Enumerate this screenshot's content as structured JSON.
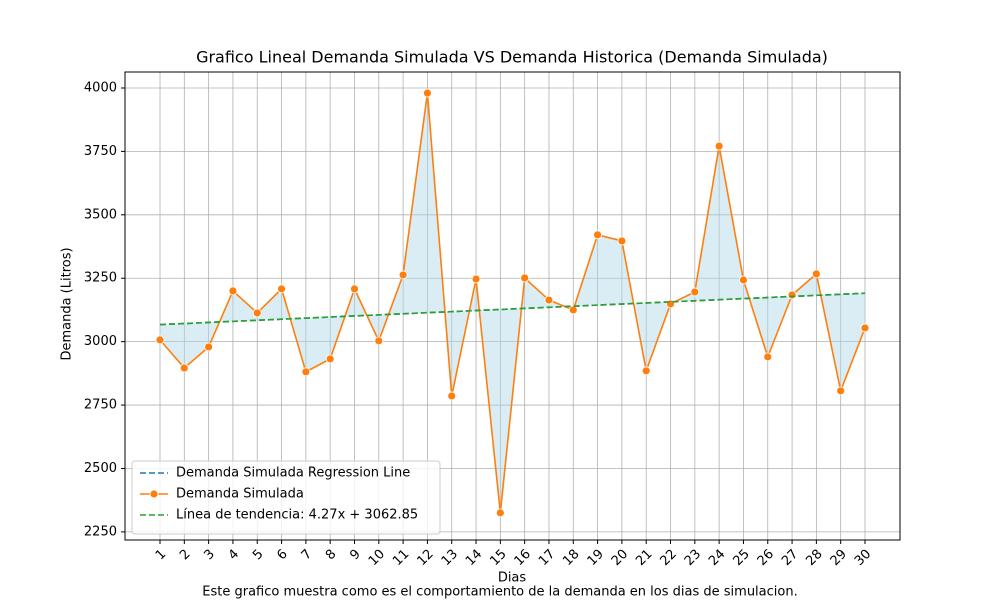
{
  "chart_data": {
    "type": "line",
    "title": "Grafico Lineal Demanda Simulada VS Demanda Historica (Demanda Simulada)",
    "xlabel": "Dias",
    "ylabel": "Demanda (Litros)",
    "caption": "Este grafico muestra como es el comportamiento de la demanda en los dias de simulacion.",
    "x": [
      1,
      2,
      3,
      4,
      5,
      6,
      7,
      8,
      9,
      10,
      11,
      12,
      13,
      14,
      15,
      16,
      17,
      18,
      19,
      20,
      21,
      22,
      23,
      24,
      25,
      26,
      27,
      28,
      29,
      30
    ],
    "xlim": [
      -0.44,
      31.44
    ],
    "xticks": [
      1,
      2,
      3,
      4,
      5,
      6,
      7,
      8,
      9,
      10,
      11,
      12,
      13,
      14,
      15,
      16,
      17,
      18,
      19,
      20,
      21,
      22,
      23,
      24,
      25,
      26,
      27,
      28,
      29,
      30
    ],
    "ylim": [
      2218,
      4063
    ],
    "yticks": [
      2250,
      2500,
      2750,
      3000,
      3250,
      3500,
      3750,
      4000
    ],
    "grid": true,
    "legend": "lower left",
    "fill_color": "#add8e6",
    "series": [
      {
        "name": "Demanda Simulada Regression Line",
        "color": "#1f77b4",
        "style": "dashed",
        "values": [
          3067.12,
          3071.39,
          3075.66,
          3079.93,
          3084.2,
          3088.47,
          3092.74,
          3097.01,
          3101.28,
          3105.55,
          3109.82,
          3114.09,
          3118.36,
          3122.63,
          3126.9,
          3131.17,
          3135.44,
          3139.71,
          3143.98,
          3148.25,
          3152.52,
          3156.79,
          3161.06,
          3165.33,
          3169.6,
          3173.87,
          3178.14,
          3182.41,
          3186.68,
          3190.95
        ]
      },
      {
        "name": "Demanda Simulada",
        "color": "#ff7f0e",
        "style": "solid",
        "marker": true,
        "values": [
          3007,
          2896,
          2979,
          3200,
          3113,
          3208,
          2881,
          2932,
          3208,
          3003,
          3263,
          3980,
          2786,
          3247,
          2325,
          3251,
          3164,
          3125,
          3421,
          3397,
          2885,
          3149,
          3196,
          3771,
          3243,
          2940,
          3184,
          3267,
          2806,
          3054
        ]
      },
      {
        "name": "Línea de tendencia: 4.27x + 3062.85",
        "color": "#2ca02c",
        "style": "dashed",
        "values": [
          3067.12,
          3071.39,
          3075.66,
          3079.93,
          3084.2,
          3088.47,
          3092.74,
          3097.01,
          3101.28,
          3105.55,
          3109.82,
          3114.09,
          3118.36,
          3122.63,
          3126.9,
          3131.17,
          3135.44,
          3139.71,
          3143.98,
          3148.25,
          3152.52,
          3156.79,
          3161.06,
          3165.33,
          3169.6,
          3173.87,
          3178.14,
          3182.41,
          3186.68,
          3190.95
        ]
      }
    ]
  }
}
